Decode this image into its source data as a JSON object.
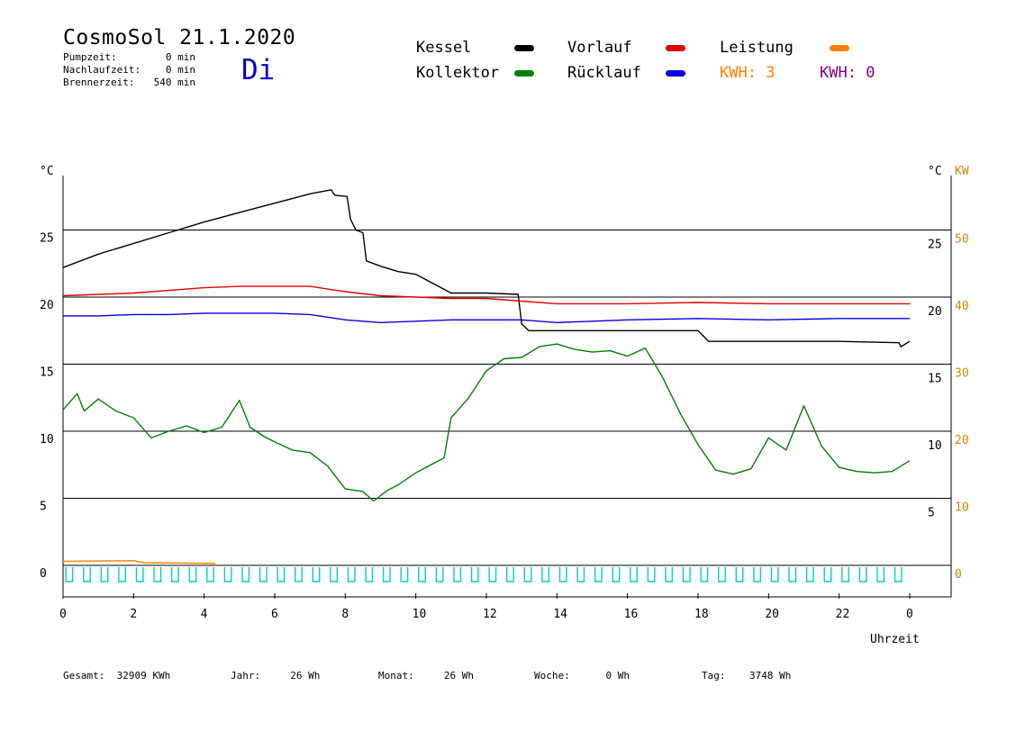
{
  "header": {
    "title": "CosmoSol 21.1.2020",
    "weekday": "Di",
    "info": [
      {
        "label": "Pumpzeit:",
        "value": "0 min"
      },
      {
        "label": "Nachlaufzeit:",
        "value": "0 min"
      },
      {
        "label": "Brennerzeit:",
        "value": "540 min"
      }
    ]
  },
  "legend": {
    "kessel": {
      "label": "Kessel",
      "color": "#000000"
    },
    "vorlauf": {
      "label": "Vorlauf",
      "color": "#e00000"
    },
    "leistung": {
      "label": "Leistung",
      "color": "#ff8000"
    },
    "kollektor": {
      "label": "Kollektor",
      "color": "#007f00"
    },
    "ruecklauf": {
      "label": "Rücklauf",
      "color": "#0000e0"
    },
    "kwh1": {
      "label": "KWH:",
      "value": "3",
      "color": "#ff8000"
    },
    "kwh2": {
      "label": "KWH:",
      "value": "0",
      "color": "#800080"
    }
  },
  "footer": [
    {
      "label": "Gesamt:",
      "value": "32909 KWh"
    },
    {
      "label": "Jahr:",
      "value": "26 Wh"
    },
    {
      "label": "Monat:",
      "value": "26 Wh"
    },
    {
      "label": "Woche:",
      "value": "0 Wh"
    },
    {
      "label": "Tag:",
      "value": "3748 Wh"
    }
  ],
  "chart_data": {
    "type": "line",
    "xlabel": "Uhrzeit",
    "x_ticks": [
      "0",
      "2",
      "4",
      "6",
      "8",
      "10",
      "12",
      "14",
      "16",
      "18",
      "20",
      "22",
      "0"
    ],
    "x_range": [
      0,
      24
    ],
    "left_axis": {
      "unit": "°C",
      "ticks": [
        0,
        5,
        10,
        15,
        20,
        25
      ],
      "range": [
        -1.2,
        29
      ]
    },
    "right_axis_temp": {
      "unit": "°C",
      "ticks": [
        5,
        10,
        15,
        20,
        25
      ]
    },
    "right_axis_power": {
      "unit": "KW",
      "ticks": [
        0,
        10,
        20,
        30,
        40,
        50
      ],
      "color": "#cc8800"
    },
    "grid": "horizontal",
    "series": [
      {
        "name": "Kessel",
        "color": "#000000",
        "points": [
          [
            0,
            22.2
          ],
          [
            1,
            23.2
          ],
          [
            2,
            24
          ],
          [
            3,
            24.8
          ],
          [
            4,
            25.6
          ],
          [
            5,
            26.3
          ],
          [
            6,
            27
          ],
          [
            7,
            27.7
          ],
          [
            7.6,
            28
          ],
          [
            7.7,
            27.6
          ],
          [
            8.05,
            27.5
          ],
          [
            8.15,
            25.8
          ],
          [
            8.3,
            25
          ],
          [
            8.5,
            24.8
          ],
          [
            8.6,
            22.7
          ],
          [
            9,
            22.3
          ],
          [
            9.5,
            21.9
          ],
          [
            10,
            21.7
          ],
          [
            10.5,
            21
          ],
          [
            11,
            20.3
          ],
          [
            12,
            20.3
          ],
          [
            12.9,
            20.2
          ],
          [
            13.0,
            18
          ],
          [
            13.2,
            17.5
          ],
          [
            16,
            17.5
          ],
          [
            18,
            17.5
          ],
          [
            18.3,
            16.7
          ],
          [
            20,
            16.7
          ],
          [
            22,
            16.7
          ],
          [
            23.7,
            16.6
          ],
          [
            23.75,
            16.3
          ],
          [
            24,
            16.7
          ]
        ]
      },
      {
        "name": "Vorlauf",
        "color": "#e00000",
        "points": [
          [
            0,
            20.1
          ],
          [
            1,
            20.2
          ],
          [
            2,
            20.3
          ],
          [
            3,
            20.5
          ],
          [
            4,
            20.7
          ],
          [
            5,
            20.8
          ],
          [
            6,
            20.8
          ],
          [
            7,
            20.8
          ],
          [
            8,
            20.4
          ],
          [
            9,
            20.1
          ],
          [
            10,
            20
          ],
          [
            11,
            19.9
          ],
          [
            12,
            19.9
          ],
          [
            13,
            19.7
          ],
          [
            14,
            19.5
          ],
          [
            16,
            19.5
          ],
          [
            18,
            19.6
          ],
          [
            20,
            19.5
          ],
          [
            22,
            19.5
          ],
          [
            24,
            19.5
          ]
        ]
      },
      {
        "name": "Rücklauf",
        "color": "#0000e0",
        "points": [
          [
            0,
            18.6
          ],
          [
            1,
            18.6
          ],
          [
            2,
            18.7
          ],
          [
            3,
            18.7
          ],
          [
            4,
            18.8
          ],
          [
            5,
            18.8
          ],
          [
            6,
            18.8
          ],
          [
            7,
            18.7
          ],
          [
            8,
            18.3
          ],
          [
            9,
            18.1
          ],
          [
            10,
            18.2
          ],
          [
            11,
            18.3
          ],
          [
            12,
            18.3
          ],
          [
            13,
            18.3
          ],
          [
            14,
            18.1
          ],
          [
            16,
            18.3
          ],
          [
            18,
            18.4
          ],
          [
            20,
            18.3
          ],
          [
            22,
            18.4
          ],
          [
            24,
            18.4
          ]
        ]
      },
      {
        "name": "Kollektor",
        "color": "#007f00",
        "points": [
          [
            0,
            11.6
          ],
          [
            0.4,
            12.8
          ],
          [
            0.6,
            11.5
          ],
          [
            1,
            12.4
          ],
          [
            1.5,
            11.5
          ],
          [
            2,
            11
          ],
          [
            2.5,
            9.5
          ],
          [
            3,
            10
          ],
          [
            3.5,
            10.4
          ],
          [
            4,
            9.9
          ],
          [
            4.5,
            10.3
          ],
          [
            5,
            12.3
          ],
          [
            5.3,
            10.3
          ],
          [
            5.7,
            9.6
          ],
          [
            6,
            9.2
          ],
          [
            6.5,
            8.6
          ],
          [
            7,
            8.4
          ],
          [
            7.5,
            7.4
          ],
          [
            8,
            5.7
          ],
          [
            8.5,
            5.5
          ],
          [
            8.8,
            4.8
          ],
          [
            9.2,
            5.6
          ],
          [
            9.5,
            6
          ],
          [
            10,
            6.9
          ],
          [
            10.5,
            7.6
          ],
          [
            10.8,
            8
          ],
          [
            11,
            11
          ],
          [
            11.5,
            12.5
          ],
          [
            12,
            14.5
          ],
          [
            12.5,
            15.4
          ],
          [
            13,
            15.5
          ],
          [
            13.5,
            16.3
          ],
          [
            14,
            16.5
          ],
          [
            14.5,
            16.1
          ],
          [
            15,
            15.9
          ],
          [
            15.5,
            16
          ],
          [
            16,
            15.6
          ],
          [
            16.5,
            16.2
          ],
          [
            17,
            14
          ],
          [
            17.5,
            11.3
          ],
          [
            18,
            9
          ],
          [
            18.5,
            7.1
          ],
          [
            19,
            6.8
          ],
          [
            19.5,
            7.2
          ],
          [
            20,
            9.5
          ],
          [
            20.5,
            8.6
          ],
          [
            21,
            11.9
          ],
          [
            21.5,
            8.9
          ],
          [
            22,
            7.3
          ],
          [
            22.5,
            7
          ],
          [
            23,
            6.9
          ],
          [
            23.5,
            7
          ],
          [
            24,
            7.8
          ]
        ]
      },
      {
        "name": "Leistung",
        "color": "#ff8000",
        "unit": "KW",
        "points": [
          [
            0,
            0.6
          ],
          [
            2,
            0.7
          ],
          [
            2.3,
            0.4
          ],
          [
            4.3,
            0.3
          ],
          [
            4.3,
            0
          ]
        ]
      },
      {
        "color": "#00cccc",
        "pattern": "pulse",
        "range": [
          0,
          24
        ]
      }
    ]
  }
}
